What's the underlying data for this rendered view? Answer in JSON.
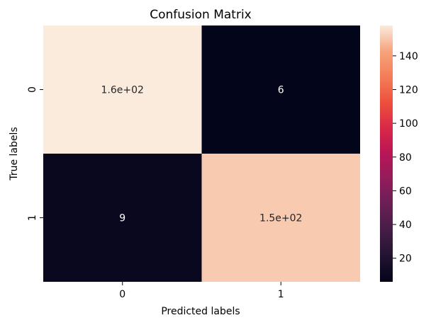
{
  "chart_data": {
    "type": "heatmap",
    "title": "Confusion Matrix",
    "xlabel": "Predicted labels",
    "ylabel": "True labels",
    "x_categories": [
      "0",
      "1"
    ],
    "y_categories": [
      "0",
      "1"
    ],
    "values": [
      [
        158,
        6
      ],
      [
        9,
        151
      ]
    ],
    "annotations": [
      [
        "1.6e+02",
        "6"
      ],
      [
        "9",
        "1.5e+02"
      ]
    ],
    "colormap": "rocket",
    "colorbar": {
      "min": 6,
      "max": 158,
      "ticks": [
        20,
        40,
        60,
        80,
        100,
        120,
        140
      ]
    }
  }
}
